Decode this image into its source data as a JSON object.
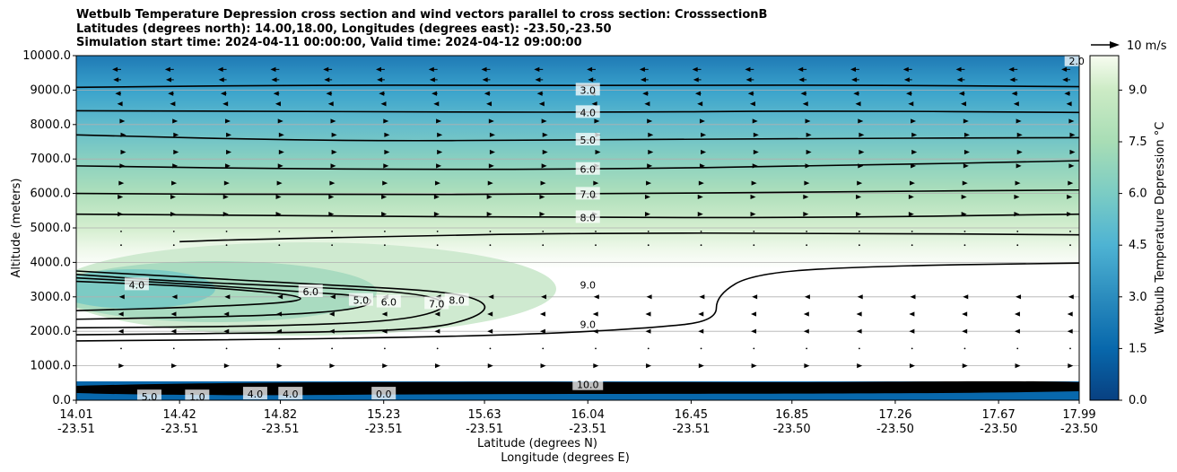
{
  "title": {
    "line1": "Wetbulb Temperature Depression cross section and wind vectors parallel to cross section: CrosssectionB",
    "line2": "Latitudes (degrees north): 14.00,18.00, Longitudes (degrees east): -23.50,-23.50",
    "line3": "Simulation start time: 2024-04-11 00:00:00, Valid time: 2024-04-12 09:00:00"
  },
  "chart_data": {
    "type": "contour",
    "ylabel": "Altitude (meters)",
    "xlabel_lat": "Latitude (degrees N)",
    "xlabel_lon": "Longitude (degrees E)",
    "ylim": [
      0,
      10000
    ],
    "yticks": [
      "0.0",
      "1000.0",
      "2000.0",
      "3000.0",
      "4000.0",
      "5000.0",
      "6000.0",
      "7000.0",
      "8000.0",
      "9000.0",
      "10000.0"
    ],
    "xticks": [
      {
        "lat": "14.01",
        "lon": "-23.51"
      },
      {
        "lat": "14.42",
        "lon": "-23.51"
      },
      {
        "lat": "14.82",
        "lon": "-23.51"
      },
      {
        "lat": "15.23",
        "lon": "-23.51"
      },
      {
        "lat": "15.63",
        "lon": "-23.51"
      },
      {
        "lat": "16.04",
        "lon": "-23.51"
      },
      {
        "lat": "16.45",
        "lon": "-23.51"
      },
      {
        "lat": "16.85",
        "lon": "-23.50"
      },
      {
        "lat": "17.26",
        "lon": "-23.50"
      },
      {
        "lat": "17.67",
        "lon": "-23.50"
      },
      {
        "lat": "17.99",
        "lon": "-23.50"
      }
    ],
    "colorbar": {
      "label": "Wetbulb Temperature Depression °C",
      "ticks": [
        "0.0",
        "1.5",
        "3.0",
        "4.5",
        "6.0",
        "7.5",
        "9.0"
      ],
      "range": [
        0,
        10
      ]
    },
    "wind_key": "10 m/s",
    "grid": "horizontal",
    "contour_labels": [
      {
        "text": "2.0",
        "lat": 17.98,
        "alt": 9850
      },
      {
        "text": "3.0",
        "lat": 16.04,
        "alt": 9000
      },
      {
        "text": "4.0",
        "lat": 16.04,
        "alt": 8350
      },
      {
        "text": "5.0",
        "lat": 16.04,
        "alt": 7550
      },
      {
        "text": "6.0",
        "lat": 16.04,
        "alt": 6700
      },
      {
        "text": "7.0",
        "lat": 16.04,
        "alt": 5980
      },
      {
        "text": "8.0",
        "lat": 16.04,
        "alt": 5300
      },
      {
        "text": "9.0",
        "lat": 16.04,
        "alt": 3350
      },
      {
        "text": "9.0",
        "lat": 16.04,
        "alt": 2200
      },
      {
        "text": "4.0",
        "lat": 14.25,
        "alt": 3350
      },
      {
        "text": "6.0",
        "lat": 14.94,
        "alt": 3150
      },
      {
        "text": "5.0",
        "lat": 15.14,
        "alt": 2900
      },
      {
        "text": "6.0",
        "lat": 15.25,
        "alt": 2850
      },
      {
        "text": "7.0",
        "lat": 15.44,
        "alt": 2800
      },
      {
        "text": "8.0",
        "lat": 15.52,
        "alt": 2900
      },
      {
        "text": "10.0",
        "lat": 16.04,
        "alt": 450
      },
      {
        "text": "0.0",
        "lat": 15.23,
        "alt": 180
      },
      {
        "text": "4.0",
        "lat": 14.72,
        "alt": 180
      },
      {
        "text": "4.0",
        "lat": 14.86,
        "alt": 180
      },
      {
        "text": "5.0",
        "lat": 14.3,
        "alt": 100
      },
      {
        "text": "1.0",
        "lat": 14.49,
        "alt": 100
      }
    ],
    "isolines": [
      {
        "level": 3.0,
        "points": [
          [
            14.01,
            9080
          ],
          [
            15.0,
            9150
          ],
          [
            16.0,
            9130
          ],
          [
            17.0,
            9150
          ],
          [
            17.99,
            9100
          ]
        ]
      },
      {
        "level": 4.0,
        "points": [
          [
            14.01,
            8400
          ],
          [
            15.0,
            8380
          ],
          [
            16.0,
            8350
          ],
          [
            17.0,
            8400
          ],
          [
            17.99,
            8350
          ]
        ]
      },
      {
        "level": 5.0,
        "points": [
          [
            14.01,
            7700
          ],
          [
            15.0,
            7520
          ],
          [
            16.0,
            7550
          ],
          [
            17.0,
            7600
          ],
          [
            17.99,
            7620
          ]
        ]
      },
      {
        "level": 6.0,
        "points": [
          [
            14.01,
            6800
          ],
          [
            15.0,
            6700
          ],
          [
            16.0,
            6700
          ],
          [
            17.0,
            6800
          ],
          [
            17.99,
            6950
          ]
        ]
      },
      {
        "level": 7.0,
        "points": [
          [
            14.01,
            6000
          ],
          [
            15.0,
            5960
          ],
          [
            16.0,
            5980
          ],
          [
            17.0,
            6050
          ],
          [
            17.99,
            6100
          ]
        ]
      },
      {
        "level": 8.0,
        "points": [
          [
            14.01,
            5400
          ],
          [
            15.0,
            5350
          ],
          [
            16.0,
            5300
          ],
          [
            17.0,
            5300
          ],
          [
            17.99,
            5400
          ]
        ]
      },
      {
        "level": 9.0,
        "points": [
          [
            14.42,
            4600
          ],
          [
            14.6,
            4650
          ],
          [
            15.2,
            4750
          ],
          [
            16.0,
            4850
          ],
          [
            17.0,
            4850
          ],
          [
            17.99,
            4800
          ]
        ]
      },
      {
        "level": 9.0,
        "points": [
          [
            14.01,
            1720
          ],
          [
            15.0,
            1780
          ],
          [
            15.8,
            1900
          ],
          [
            16.3,
            2100
          ],
          [
            16.55,
            2300
          ],
          [
            16.55,
            3050
          ],
          [
            16.7,
            3700
          ],
          [
            17.2,
            3900
          ],
          [
            17.99,
            3980
          ]
        ]
      },
      {
        "level": 8.0,
        "points": [
          [
            14.01,
            1900
          ],
          [
            14.8,
            1950
          ],
          [
            15.4,
            2050
          ],
          [
            15.6,
            2400
          ],
          [
            15.65,
            2800
          ],
          [
            15.5,
            3150
          ],
          [
            15.0,
            3350
          ],
          [
            14.5,
            3550
          ],
          [
            14.01,
            3750
          ]
        ]
      },
      {
        "level": 7.0,
        "points": [
          [
            14.01,
            2100
          ],
          [
            14.8,
            2150
          ],
          [
            15.3,
            2300
          ],
          [
            15.5,
            2700
          ],
          [
            15.4,
            3100
          ],
          [
            14.9,
            3300
          ],
          [
            14.4,
            3450
          ],
          [
            14.01,
            3650
          ]
        ]
      },
      {
        "level": 6.0,
        "points": [
          [
            14.01,
            2350
          ],
          [
            14.8,
            2450
          ],
          [
            15.15,
            2650
          ],
          [
            15.2,
            3000
          ],
          [
            14.9,
            3150
          ],
          [
            14.4,
            3400
          ],
          [
            14.01,
            3550
          ]
        ]
      },
      {
        "level": 5.0,
        "points": [
          [
            14.01,
            2600
          ],
          [
            14.5,
            2700
          ],
          [
            14.9,
            2850
          ],
          [
            14.9,
            3050
          ],
          [
            14.5,
            3300
          ],
          [
            14.01,
            3450
          ]
        ]
      }
    ],
    "wind_vectors": [
      {
        "alt": 9600,
        "u": -9
      },
      {
        "alt": 9300,
        "u": -8
      },
      {
        "alt": 8900,
        "u": -6
      },
      {
        "alt": 8600,
        "u": -4
      },
      {
        "alt": 8100,
        "u": 4
      },
      {
        "alt": 7700,
        "u": 5
      },
      {
        "alt": 7200,
        "u": 5
      },
      {
        "alt": 6800,
        "u": 4
      },
      {
        "alt": 6300,
        "u": 3
      },
      {
        "alt": 5900,
        "u": 2
      },
      {
        "alt": 5400,
        "u": 2
      },
      {
        "alt": 4900,
        "u": 1
      },
      {
        "alt": 4500,
        "u": 1
      },
      {
        "alt": 3000,
        "u": -2
      },
      {
        "alt": 2500,
        "u": -3
      },
      {
        "alt": 2000,
        "u": -3
      },
      {
        "alt": 1500,
        "u": 1
      },
      {
        "alt": 1000,
        "u": 3
      }
    ]
  }
}
